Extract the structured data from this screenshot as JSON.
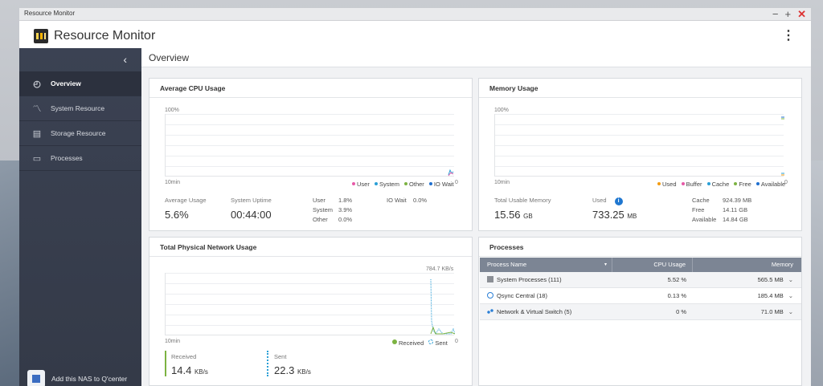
{
  "window": {
    "title": "Resource Monitor",
    "controls": {
      "minimize": "−",
      "maximize": "+",
      "close": "✕"
    }
  },
  "app": {
    "title": "Resource Monitor",
    "menu_icon": "kebab-icon"
  },
  "sidebar": {
    "collapse": "‹",
    "items": [
      {
        "label": "Overview",
        "icon": "gauge-icon",
        "active": true
      },
      {
        "label": "System Resource",
        "icon": "line-chart-icon",
        "active": false
      },
      {
        "label": "Storage Resource",
        "icon": "storage-icon",
        "active": false
      },
      {
        "label": "Processes",
        "icon": "document-icon",
        "active": false
      }
    ],
    "promo": "Add this NAS to Q'center"
  },
  "page": {
    "title": "Overview"
  },
  "cpu": {
    "title": "Average CPU Usage",
    "y_top": "100%",
    "y_bottom": "0",
    "x_label": "10min",
    "legend": [
      "User",
      "System",
      "Other",
      "IO Wait"
    ],
    "legend_colors": [
      "#e75aa8",
      "#2a9fd6",
      "#7cb342",
      "#1f6fcf"
    ],
    "avg_label": "Average Usage",
    "avg_value": "5.6%",
    "uptime_label": "System Uptime",
    "uptime_value": "00:44:00",
    "user_label": "User",
    "user_value": "1.8%",
    "system_label": "System",
    "system_value": "3.9%",
    "other_label": "Other",
    "other_value": "0.0%",
    "io_label": "IO Wait",
    "io_value": "0.0%"
  },
  "memory": {
    "title": "Memory Usage",
    "y_top": "100%",
    "y_bottom": "0",
    "x_label": "10min",
    "legend": [
      "Used",
      "Buffer",
      "Cache",
      "Free",
      "Available"
    ],
    "legend_colors": [
      "#f39c12",
      "#e75aa8",
      "#2a9fd6",
      "#7cb342",
      "#1f6fcf"
    ],
    "total_label": "Total Usable Memory",
    "total_value": "15.56",
    "total_unit": "GB",
    "used_label": "Used",
    "used_value": "733.25",
    "used_unit": "MB",
    "cache_label": "Cache",
    "cache_value": "924.39 MB",
    "free_label": "Free",
    "free_value": "14.11 GB",
    "available_label": "Available",
    "available_value": "14.84 GB"
  },
  "network": {
    "title": "Total Physical Network Usage",
    "y_top": "784.7 KB/s",
    "y_bottom": "0",
    "x_label": "10min",
    "legend": [
      "Received",
      "Sent"
    ],
    "legend_colors": [
      "#7cb342",
      "#2a9fd6"
    ],
    "received_label": "Received",
    "received_value": "14.4",
    "received_unit": "KB/s",
    "sent_label": "Sent",
    "sent_value": "22.3",
    "sent_unit": "KB/s"
  },
  "processes": {
    "title": "Processes",
    "headers": {
      "name": "Process Name",
      "cpu": "CPU Usage",
      "memory": "Memory"
    },
    "rows": [
      {
        "name": "System Processes (111)",
        "cpu": "5.52 %",
        "memory": "565.5 MB"
      },
      {
        "name": "Qsync Central (18)",
        "cpu": "0.13 %",
        "memory": "185.4 MB"
      },
      {
        "name": "Network & Virtual Switch (5)",
        "cpu": "0 %",
        "memory": "71.0 MB"
      }
    ]
  }
}
